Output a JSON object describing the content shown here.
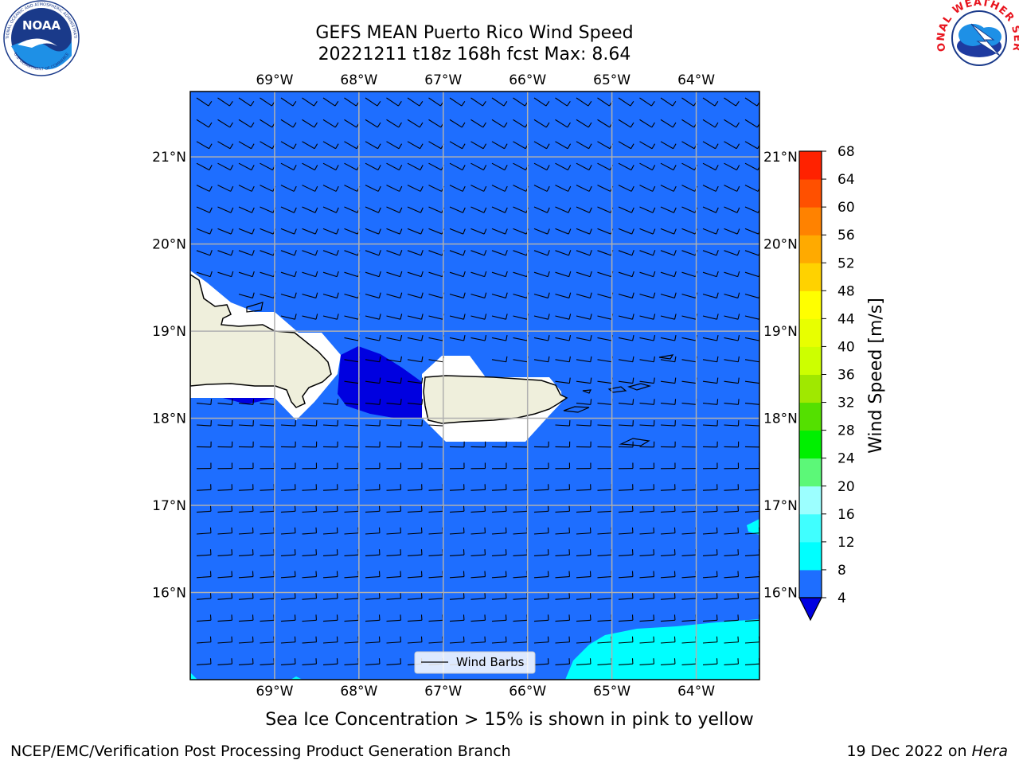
{
  "title": {
    "line1": "GEFS MEAN Puerto Rico Wind Speed",
    "line2": "20221211 t18z 168h fcst   Max: 8.64"
  },
  "logos": {
    "left": "noaa-logo",
    "left_text": "NOAA",
    "left_ring_top": "NATIONAL OCEANIC AND ATMOSPHERIC ADMINISTRATION",
    "left_ring_bottom": "U.S. DEPARTMENT OF COMMERCE",
    "right": "nws-logo",
    "right_ring": "NATIONAL WEATHER SERVICE"
  },
  "map": {
    "lon_labels": [
      "69°W",
      "68°W",
      "67°W",
      "66°W",
      "65°W",
      "64°W"
    ],
    "lat_labels": [
      "21°N",
      "20°N",
      "19°N",
      "18°N",
      "17°N",
      "16°N"
    ],
    "lon_range": [
      -70.0,
      -63.25
    ],
    "lat_range": [
      15.0,
      21.75
    ],
    "ocean_color": "#1e6eff",
    "land_color": "#efefdc",
    "grid_color": "#b0b0b0",
    "legend_label": "Wind Barbs"
  },
  "colorbar": {
    "title": "Wind Speed [m/s]",
    "ticks": [
      "4",
      "8",
      "12",
      "16",
      "20",
      "24",
      "28",
      "32",
      "36",
      "40",
      "44",
      "48",
      "52",
      "56",
      "60",
      "64",
      "68"
    ],
    "colors": [
      "#1e6eff",
      "#00ffff",
      "#40ffff",
      "#9cffff",
      "#5cf878",
      "#00f000",
      "#54e000",
      "#a0e800",
      "#cdff00",
      "#e8ff00",
      "#ffff00",
      "#ffd200",
      "#ffaa00",
      "#ff8200",
      "#ff5000",
      "#ff2200"
    ],
    "under_color": "#0000e0"
  },
  "subtitle": "Sea Ice Concentration > 15% is shown in pink to yellow",
  "footer": {
    "left": "NCEP/EMC/Verification Post Processing Product Generation Branch",
    "right_date": "19 Dec 2022 on ",
    "right_host": "Hera"
  }
}
